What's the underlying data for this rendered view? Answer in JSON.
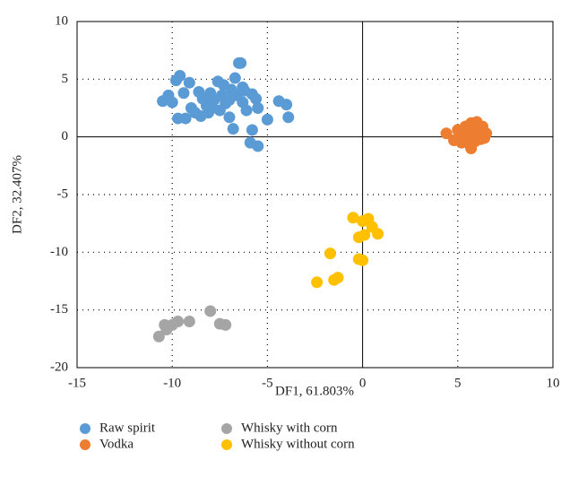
{
  "chart_data": {
    "type": "scatter",
    "x_label": "DF1, 61.803%",
    "y_label": "DF2, 32.407%",
    "xlim": [
      -15,
      10
    ],
    "ylim": [
      -20,
      10
    ],
    "xticks": [
      -15,
      -10,
      -5,
      0,
      5,
      10
    ],
    "yticks": [
      -20,
      -15,
      -10,
      -5,
      0,
      5,
      10
    ],
    "grid": true,
    "series": [
      {
        "name": "Raw spirit",
        "color": "#5b9bd5",
        "x": [
          -10.5,
          -10.2,
          -10,
          -9.8,
          -9.6,
          -9.7,
          -9.3,
          -9.4,
          -9.1,
          -9,
          -8.8,
          -8.6,
          -8.4,
          -8.2,
          -8.1,
          -8,
          -7.8,
          -7.6,
          -7.5,
          -7.4,
          -7.3,
          -7.2,
          -7,
          -7,
          -6.9,
          -6.8,
          -6.7,
          -6.6,
          -6.5,
          -6.4,
          -6.3,
          -6.3,
          -6.1,
          -5.9,
          -5.8,
          -5.8,
          -5.6,
          -5.5,
          -5.5,
          -5,
          -4.4,
          -4,
          -3.9,
          -7.9,
          -8.5,
          -6.2
        ],
        "values": [
          3.1,
          3.6,
          3,
          4.9,
          5.3,
          1.6,
          1.6,
          3.8,
          4.7,
          2.5,
          2.1,
          3.9,
          3.3,
          2.7,
          2.1,
          3.8,
          3.2,
          4.8,
          2.3,
          3.6,
          4.5,
          2.9,
          3.2,
          1.7,
          4.1,
          0.7,
          5.1,
          3.6,
          6.4,
          6.4,
          4.3,
          3,
          2.3,
          -0.5,
          3.7,
          0.6,
          3.3,
          2.5,
          -0.8,
          1.5,
          3.1,
          2.8,
          1.7,
          2.5,
          1.8,
          4
        ]
      },
      {
        "name": "Vodka",
        "color": "#ed7d31",
        "x": [
          4.4,
          4.8,
          5,
          5.2,
          5.4,
          5.6,
          5.7,
          5.8,
          5.7,
          6,
          6.1,
          6.2,
          6.3,
          6.5,
          5.5,
          5.9,
          6.4,
          5.2
        ],
        "values": [
          0.3,
          -0.3,
          0.6,
          0,
          0.9,
          -0.6,
          1.2,
          0.3,
          -1,
          1.3,
          0.5,
          -0.2,
          0.9,
          0.3,
          0.2,
          -0.4,
          -0.1,
          -0.5
        ]
      },
      {
        "name": "Whisky with corn",
        "color": "#a5a5a5",
        "x": [
          -10.7,
          -10.4,
          -10.3,
          -10,
          -9.7,
          -9.1,
          -8,
          -7.5,
          -7.2
        ],
        "values": [
          -17.3,
          -16.3,
          -16.7,
          -16.3,
          -16,
          -16,
          -15.1,
          -16.2,
          -16.3
        ]
      },
      {
        "name": "Whisky without corn",
        "color": "#ffc000",
        "x": [
          -0.5,
          0,
          0.3,
          0.5,
          0.8,
          -0.2,
          0.1,
          -1.7,
          -0.2,
          0,
          -2.4,
          -1.5,
          -1.3
        ],
        "values": [
          -7,
          -7.3,
          -7.1,
          -7.8,
          -8.4,
          -8.7,
          -8.5,
          -10.1,
          -10.6,
          -10.7,
          -12.6,
          -12.4,
          -12.2
        ]
      }
    ]
  }
}
